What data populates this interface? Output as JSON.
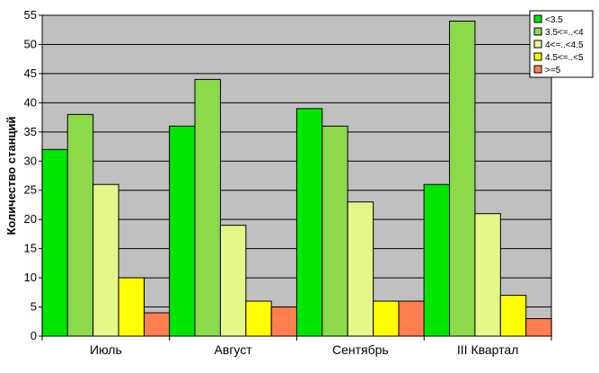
{
  "chart_data": {
    "type": "bar",
    "title": "",
    "xlabel": "",
    "ylabel": "Количество станций",
    "ylim": [
      0,
      55
    ],
    "yticks": [
      0,
      5,
      10,
      15,
      20,
      25,
      30,
      35,
      40,
      45,
      50,
      55
    ],
    "grid": true,
    "legend_position": "top-right",
    "plot_background": "#c0c0c0",
    "categories": [
      "Июль",
      "Август",
      "Сентябрь",
      "III Квартал"
    ],
    "series": [
      {
        "name": "<3.5",
        "color": "#00e600",
        "values": [
          32,
          36,
          39,
          26
        ]
      },
      {
        "name": "3.5<=..<4",
        "color": "#8cd94a",
        "values": [
          38,
          44,
          36,
          54
        ]
      },
      {
        "name": "4<=..<4.5",
        "color": "#e6f78a",
        "values": [
          26,
          19,
          23,
          21
        ]
      },
      {
        "name": "4.5<=..<5",
        "color": "#ffff00",
        "values": [
          10,
          6,
          6,
          7
        ]
      },
      {
        "name": ">=5",
        "color": "#ff7f50",
        "values": [
          4,
          5,
          6,
          3
        ]
      }
    ]
  }
}
